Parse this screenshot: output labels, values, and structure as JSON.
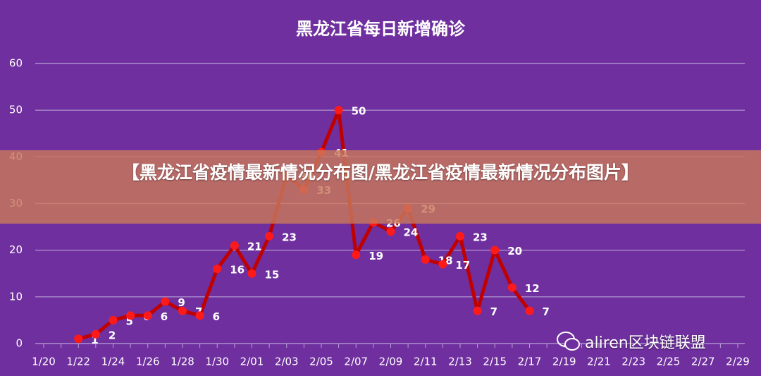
{
  "chart_data": {
    "type": "line",
    "title": "黑龙江省每日新增确诊",
    "categories": [
      "1/20",
      null,
      "1/22",
      null,
      "1/24",
      null,
      "1/26",
      null,
      "1/28",
      null,
      "1/30",
      null,
      "2/01",
      null,
      "2/03",
      null,
      "2/05",
      null,
      "2/07",
      null,
      "2/09",
      null,
      "2/11",
      null,
      "2/13",
      null,
      "2/15",
      null,
      "2/17",
      null,
      "2/19",
      null,
      "2/21",
      null,
      "2/23",
      null,
      "2/25",
      null,
      "2/27",
      null,
      "2/29"
    ],
    "series": [
      {
        "color": "#c00000",
        "marker_color": "#ff1a1a",
        "values": [
          null,
          null,
          1,
          2,
          5,
          6,
          6,
          9,
          7,
          6,
          16,
          21,
          15,
          23,
          36,
          33,
          41,
          50,
          19,
          26,
          24,
          29,
          18,
          17,
          23,
          7,
          20,
          12,
          7,
          null,
          null,
          null,
          null,
          null,
          null,
          null,
          null,
          null,
          null,
          null,
          null
        ]
      }
    ],
    "ylim": [
      0,
      60
    ],
    "yticks": [
      0,
      10,
      20,
      30,
      40,
      50,
      60
    ],
    "grid": true,
    "data_labels": true
  },
  "overlay": {
    "banner": "【黑龙江省疫情最新情况分布图/黑龙江省疫情最新情况分布图片】",
    "watermark": "aliren区块链联盟"
  }
}
